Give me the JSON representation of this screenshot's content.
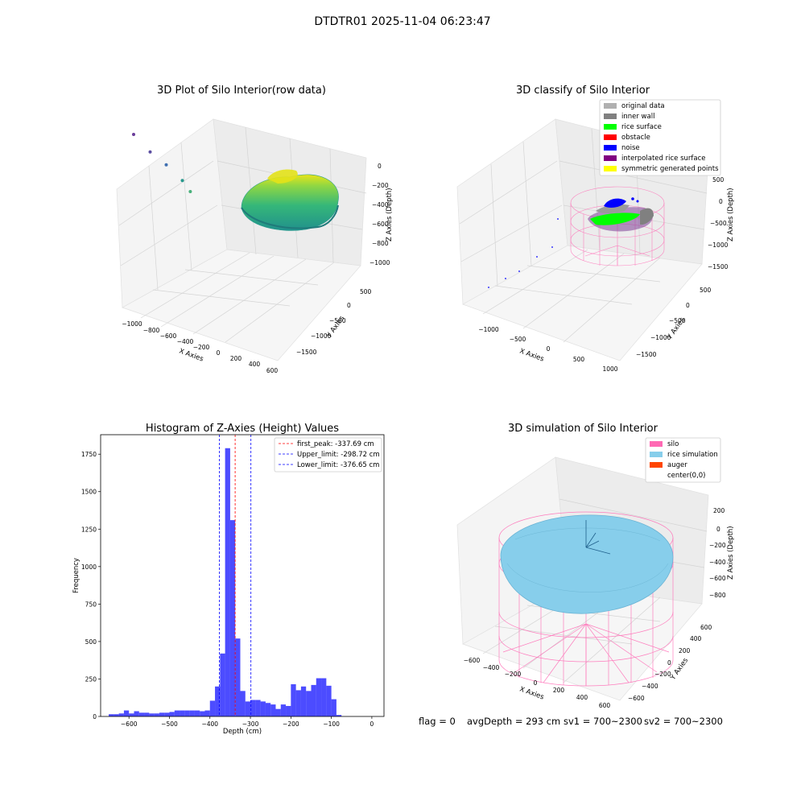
{
  "suptitle": "DTDTR01 2025-11-04 06:23:47",
  "footer": {
    "flag": "flag = 0",
    "avg": "avgDepth = 293 cm",
    "sv1": "sv1 = 700~2300",
    "sv2": "sv2 = 700~2300"
  },
  "chart_data": [
    {
      "type": "scatter",
      "projection": "3d",
      "title": "3D Plot of Silo Interior(row data)",
      "xlabel": "X Axies",
      "ylabel": "Y Axies",
      "zlabel": "Z Axies (Depth)",
      "x_ticks": [
        "−1000",
        "−800",
        "−600",
        "−400",
        "−200",
        "0",
        "200",
        "400",
        "600"
      ],
      "y_ticks": [
        "500",
        "0",
        "−500",
        "−1000",
        "−1500"
      ],
      "z_ticks": [
        "0",
        "−200",
        "−400",
        "−600",
        "−800",
        "−1000"
      ],
      "colormap": "viridis",
      "outlier_points": [
        {
          "x": -1000,
          "y": -1400,
          "z": -1000
        },
        {
          "x": -850,
          "y": -1150,
          "z": -850
        },
        {
          "x": -700,
          "y": -950,
          "z": -750
        },
        {
          "x": -550,
          "y": -750,
          "z": -600
        },
        {
          "x": -480,
          "y": -600,
          "z": -500
        }
      ]
    },
    {
      "type": "scatter",
      "projection": "3d",
      "title": "3D classify of Silo Interior",
      "xlabel": "X Axies",
      "ylabel": "Y Axies",
      "zlabel": "Z Axies (Depth)",
      "x_ticks": [
        "−1000",
        "−500",
        "0",
        "500",
        "1000"
      ],
      "y_ticks": [
        "500",
        "0",
        "−500",
        "−1000",
        "−1500"
      ],
      "z_ticks": [
        "500",
        "0",
        "−500",
        "−1000",
        "−1500"
      ],
      "legend": [
        {
          "label": "original data",
          "color": "#b0b0b0"
        },
        {
          "label": "inner wall",
          "color": "#808080"
        },
        {
          "label": "rice surface",
          "color": "#00ff00"
        },
        {
          "label": "obstacle",
          "color": "#ff0000"
        },
        {
          "label": "noise",
          "color": "#0000ff"
        },
        {
          "label": "interpolated rice surface",
          "color": "#800080"
        },
        {
          "label": "symmetric generated points",
          "color": "#ffff00"
        }
      ],
      "legend_placement": "upper right"
    },
    {
      "type": "bar",
      "title": "Histogram of Z-Axies (Height) Values",
      "xlabel": "Depth (cm)",
      "ylabel": "Frequency",
      "xlim": [
        -670,
        30
      ],
      "ylim": [
        0,
        1880
      ],
      "x_ticks": [
        -600,
        -500,
        -400,
        -300,
        -200,
        -100,
        0
      ],
      "x_tick_labels": [
        "−600",
        "−500",
        "−400",
        "−300",
        "−200",
        "−100",
        "0"
      ],
      "y_ticks": [
        0,
        250,
        500,
        750,
        1000,
        1250,
        1500,
        1750
      ],
      "bin_width": 12.5,
      "bins_start": -650,
      "values": [
        15,
        15,
        20,
        40,
        20,
        35,
        25,
        25,
        20,
        20,
        25,
        25,
        30,
        40,
        40,
        40,
        40,
        40,
        35,
        40,
        105,
        200,
        420,
        1790,
        1310,
        520,
        170,
        100,
        110,
        110,
        100,
        90,
        80,
        50,
        80,
        70,
        215,
        175,
        200,
        170,
        210,
        255,
        255,
        205,
        115,
        10
      ],
      "color": "#0000ff",
      "lines": [
        {
          "label": "first_peak: -337.69 cm",
          "x": -337.69,
          "color": "#ff0000"
        },
        {
          "label": "Upper_limit: -298.72 cm",
          "x": -298.72,
          "color": "#0000ff"
        },
        {
          "label": "Lower_limit: -376.65 cm",
          "x": -376.65,
          "color": "#0000ff"
        }
      ],
      "legend_placement": "upper right"
    },
    {
      "type": "scatter",
      "projection": "3d",
      "title": "3D simulation of Silo Interior",
      "xlabel": "X Axies",
      "ylabel": "Y Axies",
      "zlabel": "Z Axies (Depth)",
      "x_ticks": [
        "−600",
        "−400",
        "−200",
        "0",
        "200",
        "400",
        "600"
      ],
      "y_ticks": [
        "600",
        "400",
        "200",
        "0",
        "−200",
        "−400",
        "−600"
      ],
      "z_ticks": [
        "200",
        "0",
        "−200",
        "−400",
        "−600",
        "−800"
      ],
      "legend": [
        {
          "label": "silo",
          "color": "#ff69b4"
        },
        {
          "label": "rice simulation",
          "color": "#87ceeb"
        },
        {
          "label": "auger",
          "color": "#ff4500"
        },
        {
          "label": "center(0,0)",
          "color": "#ffffff"
        }
      ],
      "legend_placement": "upper right"
    }
  ]
}
